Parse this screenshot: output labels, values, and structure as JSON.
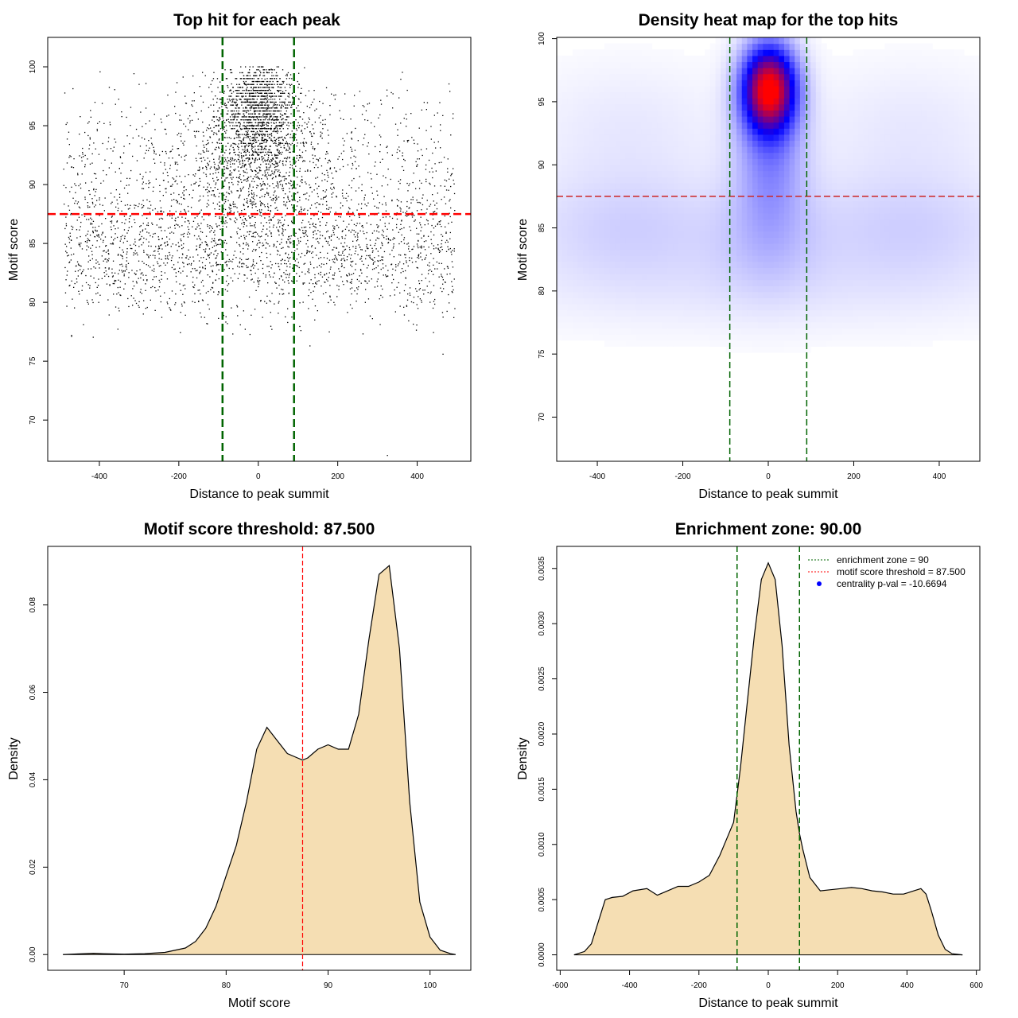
{
  "chart_data": [
    {
      "id": "scatter",
      "type": "scatter",
      "title": "Top hit for each peak",
      "xlabel": "Distance to peak summit",
      "ylabel": "Motif score",
      "xlim": [
        -530,
        535
      ],
      "ylim": [
        66.5,
        102.5
      ],
      "xticks": [
        -400,
        -200,
        0,
        200,
        400
      ],
      "yticks": [
        70,
        75,
        80,
        85,
        90,
        95,
        100
      ],
      "hline": {
        "y": 87.5,
        "color": "#ff0000",
        "style": "dashed"
      },
      "vlines": [
        {
          "x": -90,
          "color": "#006400"
        },
        {
          "x": 90,
          "color": "#006400"
        }
      ],
      "point_color": "#000000",
      "points": {
        "n": 5200,
        "x_range": [
          -490,
          495
        ],
        "bands": [
          {
            "fraction": 0.3,
            "y_mean": 84,
            "y_sd": 2.5,
            "x_uniform": [
              -490,
              495
            ]
          },
          {
            "fraction": 0.25,
            "y_mean": 90,
            "y_sd": 4.5,
            "x_uniform": [
              -490,
              495
            ]
          },
          {
            "fraction": 0.25,
            "y_mean": 96.5,
            "y_sd": 2.2,
            "x_center": 0,
            "x_sd": 45
          },
          {
            "fraction": 0.2,
            "y_mean": 92,
            "y_sd": 3.5,
            "x_center": 0,
            "x_sd": 90
          }
        ],
        "outliers": [
          {
            "x": 325,
            "y": 67
          },
          {
            "x": -470,
            "y": 77.2
          },
          {
            "x": 465,
            "y": 75.6
          },
          {
            "x": 130,
            "y": 76.3
          }
        ]
      }
    },
    {
      "id": "heatmap",
      "type": "heatmap",
      "title": "Density heat map for the top hits",
      "xlabel": "Distance to peak summit",
      "ylabel": "Motif score",
      "xlim": [
        -495,
        495
      ],
      "ylim": [
        66.5,
        100.1
      ],
      "xticks": [
        -400,
        -200,
        0,
        200,
        400
      ],
      "yticks": [
        70,
        75,
        80,
        85,
        90,
        95,
        100
      ],
      "hline": {
        "y": 87.5,
        "color": "#cd2626",
        "style": "dashed"
      },
      "vlines": [
        {
          "x": -90,
          "color": "#006400"
        },
        {
          "x": 90,
          "color": "#006400"
        }
      ],
      "color_scale": [
        "#ffffff",
        "#0000ff",
        "#ff0000"
      ],
      "hotspot": {
        "x": 2,
        "y": 96
      },
      "components": [
        {
          "x": 2,
          "y": 96,
          "sx": 40,
          "sy": 2.2,
          "w": 1.0
        },
        {
          "x": 5,
          "y": 91,
          "sx": 55,
          "sy": 4,
          "w": 0.18
        },
        {
          "x": 0,
          "y": 84,
          "sx": 85,
          "sy": 3,
          "w": 0.06
        },
        {
          "x": -320,
          "y": 85,
          "sx": 180,
          "sy": 3.2,
          "w": 0.06
        },
        {
          "x": 320,
          "y": 85,
          "sx": 180,
          "sy": 3.2,
          "w": 0.06
        },
        {
          "x": -330,
          "y": 93,
          "sx": 160,
          "sy": 3.5,
          "w": 0.025
        },
        {
          "x": 330,
          "y": 93,
          "sx": 160,
          "sy": 3.5,
          "w": 0.025
        },
        {
          "x": 0,
          "y": 80,
          "sx": 450,
          "sy": 2.5,
          "w": 0.02
        }
      ]
    },
    {
      "id": "score_density",
      "type": "area",
      "title": "Motif score threshold: 87.500",
      "xlabel": "Motif score",
      "ylabel": "Density",
      "xlim": [
        62.5,
        104.0
      ],
      "ylim": [
        -0.0036,
        0.0934
      ],
      "xticks": [
        70,
        80,
        90,
        100
      ],
      "yticks": [
        0.0,
        0.02,
        0.04,
        0.06,
        0.08
      ],
      "ytick_labels": [
        "0.00",
        "0.02",
        "0.04",
        "0.06",
        "0.08"
      ],
      "fill": "#f5deb3",
      "vline": {
        "x": 87.5,
        "color": "#ff0000"
      },
      "x": [
        64,
        66,
        67,
        68,
        70,
        72,
        74,
        76,
        77,
        78,
        79,
        80,
        81,
        82,
        83,
        84,
        85,
        86,
        87,
        87.5,
        88,
        89,
        90,
        91,
        92,
        93,
        94,
        95,
        96,
        97,
        98,
        99,
        100,
        101,
        102,
        102.5
      ],
      "y": [
        0,
        0.0002,
        0.0003,
        0.0002,
        0.0001,
        0.0002,
        0.0005,
        0.0015,
        0.003,
        0.006,
        0.011,
        0.018,
        0.025,
        0.035,
        0.047,
        0.052,
        0.049,
        0.046,
        0.045,
        0.0445,
        0.045,
        0.047,
        0.048,
        0.047,
        0.047,
        0.055,
        0.072,
        0.087,
        0.089,
        0.07,
        0.035,
        0.012,
        0.004,
        0.001,
        0.0002,
        0
      ]
    },
    {
      "id": "distance_density",
      "type": "area",
      "title": "Enrichment zone: 90.00",
      "xlabel": "Distance to peak summit",
      "ylabel": "Density",
      "xlim": [
        -610,
        610
      ],
      "ylim": [
        -0.00014,
        0.0037
      ],
      "xticks": [
        -600,
        -400,
        -200,
        0,
        200,
        400,
        600
      ],
      "yticks": [
        0.0,
        0.0005,
        0.001,
        0.0015,
        0.002,
        0.0025,
        0.003,
        0.0035
      ],
      "ytick_labels": [
        "0.0000",
        "0.0005",
        "0.0010",
        "0.0015",
        "0.0020",
        "0.0025",
        "0.0030",
        "0.0035"
      ],
      "fill": "#f5deb3",
      "vlines": [
        {
          "x": -90,
          "color": "#006400"
        },
        {
          "x": 90,
          "color": "#006400"
        }
      ],
      "x": [
        -560,
        -530,
        -510,
        -490,
        -470,
        -450,
        -420,
        -390,
        -350,
        -320,
        -290,
        -260,
        -230,
        -200,
        -170,
        -140,
        -120,
        -100,
        -90,
        -80,
        -60,
        -40,
        -20,
        0,
        20,
        40,
        60,
        80,
        90,
        100,
        120,
        150,
        180,
        210,
        240,
        270,
        300,
        330,
        360,
        390,
        420,
        440,
        455,
        470,
        490,
        510,
        530,
        560
      ],
      "y": [
        0,
        3e-05,
        0.0001,
        0.0003,
        0.0005,
        0.00052,
        0.00053,
        0.00058,
        0.0006,
        0.00054,
        0.00058,
        0.00062,
        0.00062,
        0.00066,
        0.00072,
        0.0009,
        0.00105,
        0.0012,
        0.00145,
        0.0017,
        0.0023,
        0.0029,
        0.0034,
        0.00355,
        0.0034,
        0.0028,
        0.0019,
        0.0013,
        0.0011,
        0.00095,
        0.0007,
        0.00058,
        0.00059,
        0.0006,
        0.00061,
        0.0006,
        0.00058,
        0.00057,
        0.00055,
        0.00055,
        0.00058,
        0.0006,
        0.00055,
        0.0004,
        0.00018,
        5e-05,
        1e-05,
        0
      ]
    }
  ],
  "legend": {
    "entries": [
      {
        "label": "enrichment zone = 90",
        "color": "#006400",
        "symbol": "dotted-line"
      },
      {
        "label": "motif score threshold = 87.500",
        "color": "#ff0000",
        "symbol": "dotted-line"
      },
      {
        "label": "centrality p-val = -10.6694",
        "color": "#0000ff",
        "symbol": "filled-circle"
      }
    ],
    "placement": "top-right"
  }
}
